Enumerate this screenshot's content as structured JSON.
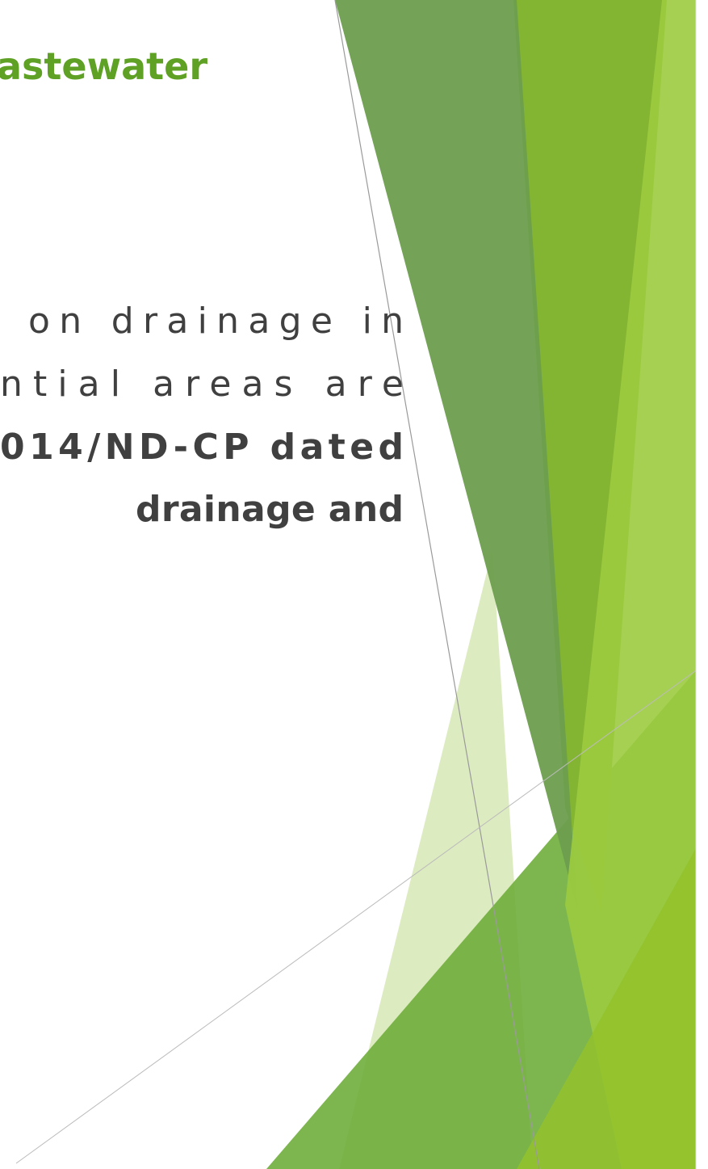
{
  "title": "astewater",
  "body": {
    "lines": [
      "on drainage in",
      "ntial areas are",
      "014/ND-CP dated",
      "drainage and"
    ]
  }
}
